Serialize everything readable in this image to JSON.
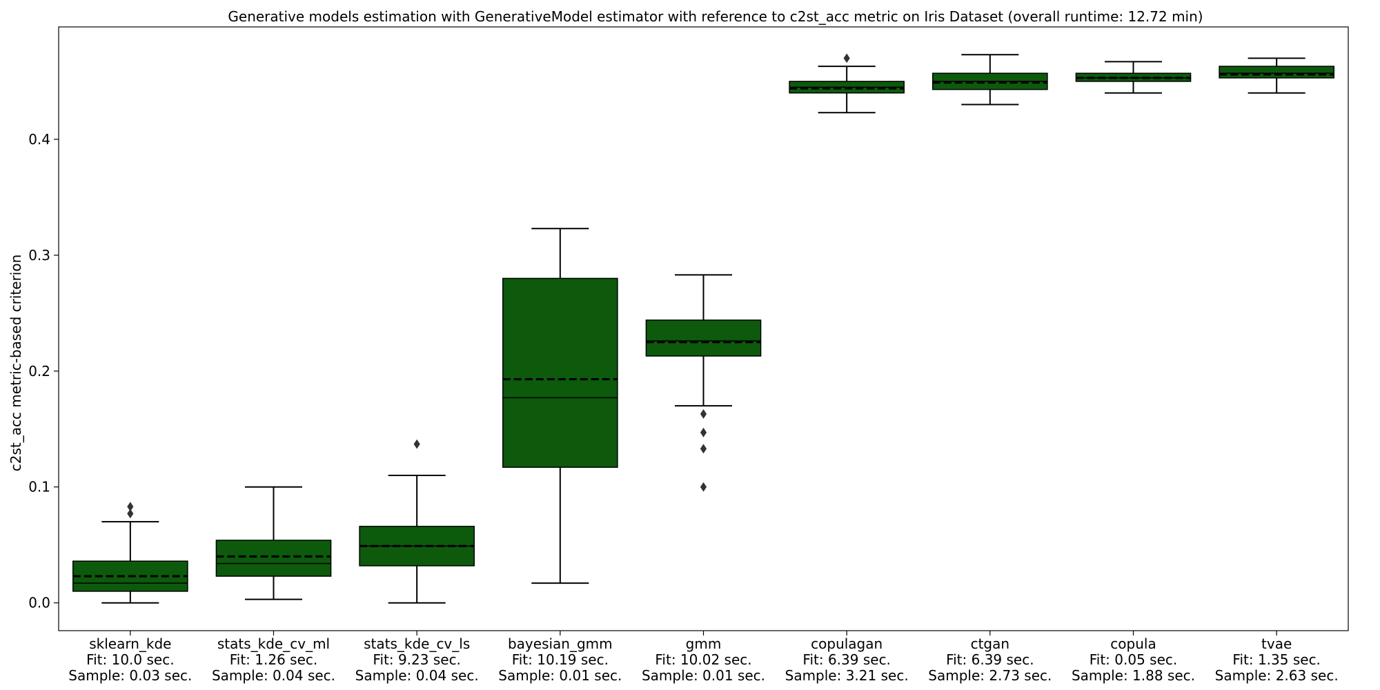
{
  "chart_data": {
    "type": "box",
    "title": "Generative models estimation with GenerativeModel estimator with reference to c2st_acc metric on Iris Dataset (overall runtime: 12.72 min)",
    "xlabel": "",
    "ylabel": "c2st_acc metric-based criterion",
    "ylim": [
      -0.024,
      0.497
    ],
    "yticks": [
      {
        "value": 0.0,
        "label": "0.0"
      },
      {
        "value": 0.1,
        "label": "0.1"
      },
      {
        "value": 0.2,
        "label": "0.2"
      },
      {
        "value": 0.3,
        "label": "0.3"
      },
      {
        "value": 0.4,
        "label": "0.4"
      }
    ],
    "grid": false,
    "box_color": "#0d5a0d",
    "categories": [
      {
        "name": "sklearn_kde",
        "fit": "Fit: 10.0 sec.",
        "sample": "Sample: 0.03 sec.",
        "whisker_low": 0.0,
        "q1": 0.01,
        "median": 0.017,
        "q3": 0.036,
        "whisker_high": 0.07,
        "mean": 0.023,
        "outliers": [
          0.077,
          0.083
        ]
      },
      {
        "name": "stats_kde_cv_ml",
        "fit": "Fit: 1.26 sec.",
        "sample": "Sample: 0.04 sec.",
        "whisker_low": 0.003,
        "q1": 0.023,
        "median": 0.034,
        "q3": 0.054,
        "whisker_high": 0.1,
        "mean": 0.04,
        "outliers": []
      },
      {
        "name": "stats_kde_cv_ls",
        "fit": "Fit: 9.23 sec.",
        "sample": "Sample: 0.04 sec.",
        "whisker_low": 0.0,
        "q1": 0.032,
        "median": 0.049,
        "q3": 0.066,
        "whisker_high": 0.11,
        "mean": 0.049,
        "outliers": [
          0.137
        ]
      },
      {
        "name": "bayesian_gmm",
        "fit": "Fit: 10.19 sec.",
        "sample": "Sample: 0.01 sec.",
        "whisker_low": 0.017,
        "q1": 0.117,
        "median": 0.177,
        "q3": 0.28,
        "whisker_high": 0.323,
        "mean": 0.193,
        "outliers": []
      },
      {
        "name": "gmm",
        "fit": "Fit: 10.02 sec.",
        "sample": "Sample: 0.01 sec.",
        "whisker_low": 0.17,
        "q1": 0.213,
        "median": 0.226,
        "q3": 0.244,
        "whisker_high": 0.283,
        "mean": 0.225,
        "outliers": [
          0.1,
          0.133,
          0.147,
          0.163
        ]
      },
      {
        "name": "copulagan",
        "fit": "Fit: 6.39 sec.",
        "sample": "Sample: 3.21 sec.",
        "whisker_low": 0.423,
        "q1": 0.44,
        "median": 0.445,
        "q3": 0.45,
        "whisker_high": 0.463,
        "mean": 0.444,
        "outliers": [
          0.47
        ]
      },
      {
        "name": "ctgan",
        "fit": "Fit: 6.39 sec.",
        "sample": "Sample: 2.73 sec.",
        "whisker_low": 0.43,
        "q1": 0.443,
        "median": 0.45,
        "q3": 0.457,
        "whisker_high": 0.473,
        "mean": 0.449,
        "outliers": []
      },
      {
        "name": "copula",
        "fit": "Fit: 0.05 sec.",
        "sample": "Sample: 1.88 sec.",
        "whisker_low": 0.44,
        "q1": 0.45,
        "median": 0.453,
        "q3": 0.457,
        "whisker_high": 0.467,
        "mean": 0.453,
        "outliers": []
      },
      {
        "name": "tvae",
        "fit": "Fit: 1.35 sec.",
        "sample": "Sample: 2.63 sec.",
        "whisker_low": 0.44,
        "q1": 0.453,
        "median": 0.457,
        "q3": 0.463,
        "whisker_high": 0.47,
        "mean": 0.456,
        "outliers": []
      }
    ]
  }
}
